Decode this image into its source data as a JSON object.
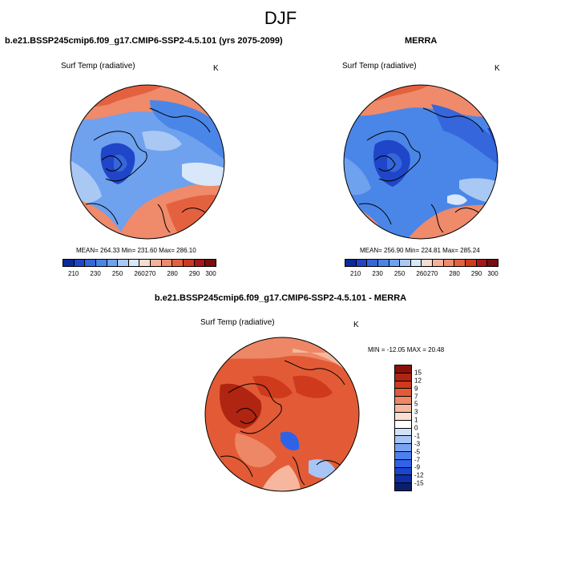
{
  "figure_title": "DJF",
  "colors": {
    "abs_palette": [
      "#0a2a9e",
      "#1f45c8",
      "#3566db",
      "#4a86e8",
      "#6ea1ee",
      "#a9c8f4",
      "#d8e7fa",
      "#f7ddd0",
      "#f4b29b",
      "#ef8a6b",
      "#e4613f",
      "#cf3a1f",
      "#a81616",
      "#7a0c0c"
    ],
    "diff_palette": [
      "#08206b",
      "#0d2ea8",
      "#1a45d1",
      "#2f62e6",
      "#4c80ec",
      "#79a3f2",
      "#a8c5f6",
      "#d3e2fb",
      "#fbe0d2",
      "#f6b79e",
      "#ee8766",
      "#e25b36",
      "#cf3a1c",
      "#b02512",
      "#8a1108"
    ]
  },
  "panels": {
    "model": {
      "title": "b.e21.BSSP245cmip6.f09_g17.CMIP6-SSP2-4.5.101 (yrs 2075-2099)",
      "variable": "Surf Temp (radiative)",
      "units": "K",
      "stats": "MEAN= 264.33  Min= 231.60  Max= 286.10",
      "colorbar_labels": [
        "210",
        "230",
        "250",
        "260",
        "270",
        "280",
        "290",
        "300"
      ]
    },
    "obs": {
      "title": "MERRA",
      "variable": "Surf Temp (radiative)",
      "units": "K",
      "stats": "MEAN= 256.90  Min= 224.81  Max= 285.24",
      "colorbar_labels": [
        "210",
        "230",
        "250",
        "260",
        "270",
        "280",
        "290",
        "300"
      ]
    },
    "diff": {
      "title": "b.e21.BSSP245cmip6.f09_g17.CMIP6-SSP2-4.5.101 - MERRA",
      "variable": "Surf Temp (radiative)",
      "units": "K",
      "stats": "MIN = -12.05 MAX =  20.48",
      "colorbar_labels": [
        "15",
        "12",
        "9",
        "7",
        "5",
        "3",
        "1",
        "0",
        "-1",
        "-3",
        "-5",
        "-7",
        "-9",
        "-12",
        "-15"
      ]
    }
  }
}
